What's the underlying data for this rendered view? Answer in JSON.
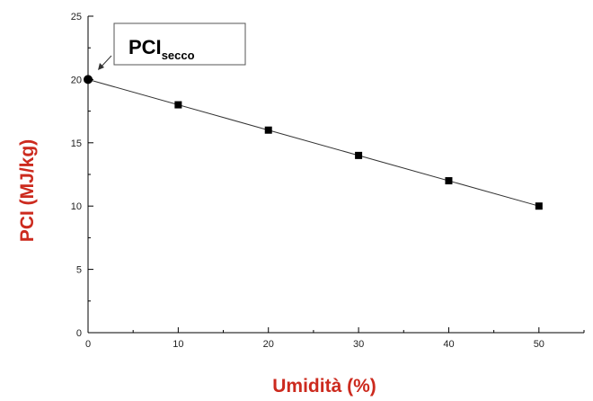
{
  "chart_data": {
    "type": "scatter",
    "title": "",
    "xlabel": "Umidità (%)",
    "ylabel": "PCI (MJ/kg)",
    "xlim": [
      0,
      55
    ],
    "ylim": [
      0,
      25
    ],
    "x_ticks": [
      0,
      10,
      20,
      30,
      40,
      50
    ],
    "y_ticks": [
      0,
      5,
      10,
      15,
      20,
      25
    ],
    "grid": false,
    "legend": "none",
    "series": [
      {
        "x": [
          0,
          10,
          20,
          30,
          40,
          50
        ],
        "y": [
          20,
          18,
          16,
          14,
          12,
          10
        ]
      }
    ],
    "fit_line": {
      "x": [
        0,
        50
      ],
      "y": [
        20,
        10
      ]
    },
    "annotation": {
      "text": "PCI",
      "subscript": "secco",
      "points_to": {
        "x": 0,
        "y": 20
      }
    },
    "colors": {
      "axis_title": "#cc2a1e",
      "marker": "#000000",
      "line": "#333333"
    }
  }
}
